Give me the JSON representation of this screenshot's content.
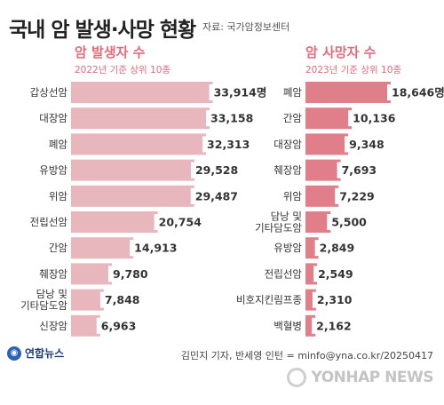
{
  "header": {
    "title": "국내 암 발생·사망 현황",
    "source": "자료: 국가암정보센터"
  },
  "colors": {
    "incidence_bar": "#e8b6bd",
    "incidence_accent": "#e26a7a",
    "mortality_bar": "#e07f8a",
    "value_box_bg": "#ffffff",
    "text": "#333333"
  },
  "chart_data": [
    {
      "type": "bar",
      "orientation": "horizontal",
      "title": "암 발생자 수",
      "subtitle": "2022년 기준 상위 10종",
      "categories": [
        "갑상선암",
        "대장암",
        "폐암",
        "유방암",
        "위암",
        "전립선암",
        "간암",
        "췌장암",
        "담낭 및\n기타담도암",
        "신장암"
      ],
      "values": [
        33914,
        33158,
        32313,
        29528,
        29487,
        20754,
        14913,
        9780,
        7848,
        6963
      ],
      "value_labels": [
        "33,914",
        "33,158",
        "32,313",
        "29,528",
        "29,487",
        "20,754",
        "14,913",
        "9,780",
        "7,848",
        "6,963"
      ],
      "unit": "명",
      "xlim": [
        0,
        34000
      ],
      "legend": false,
      "grid": false
    },
    {
      "type": "bar",
      "orientation": "horizontal",
      "title": "암 사망자 수",
      "subtitle": "2023년 기준 상위 10종",
      "categories": [
        "폐암",
        "간암",
        "대장암",
        "췌장암",
        "위암",
        "담낭 및\n기타담도암",
        "유방암",
        "전립선암",
        "비호지킨림프종",
        "백혈병"
      ],
      "values": [
        18646,
        10136,
        9348,
        7693,
        7229,
        5500,
        2849,
        2549,
        2310,
        2162
      ],
      "value_labels": [
        "18,646",
        "10,136",
        "9,348",
        "7,693",
        "7,229",
        "5,500",
        "2,849",
        "2,549",
        "2,310",
        "2,162"
      ],
      "unit": "명",
      "xlim": [
        0,
        18646
      ],
      "legend": false,
      "grid": false
    }
  ],
  "footer": {
    "logo_text": "연합뉴스",
    "credit": "김민지 기자, 반세영 인턴 = minfo@yna.co.kr/20250417",
    "watermark": "YONHAP NEWS"
  }
}
